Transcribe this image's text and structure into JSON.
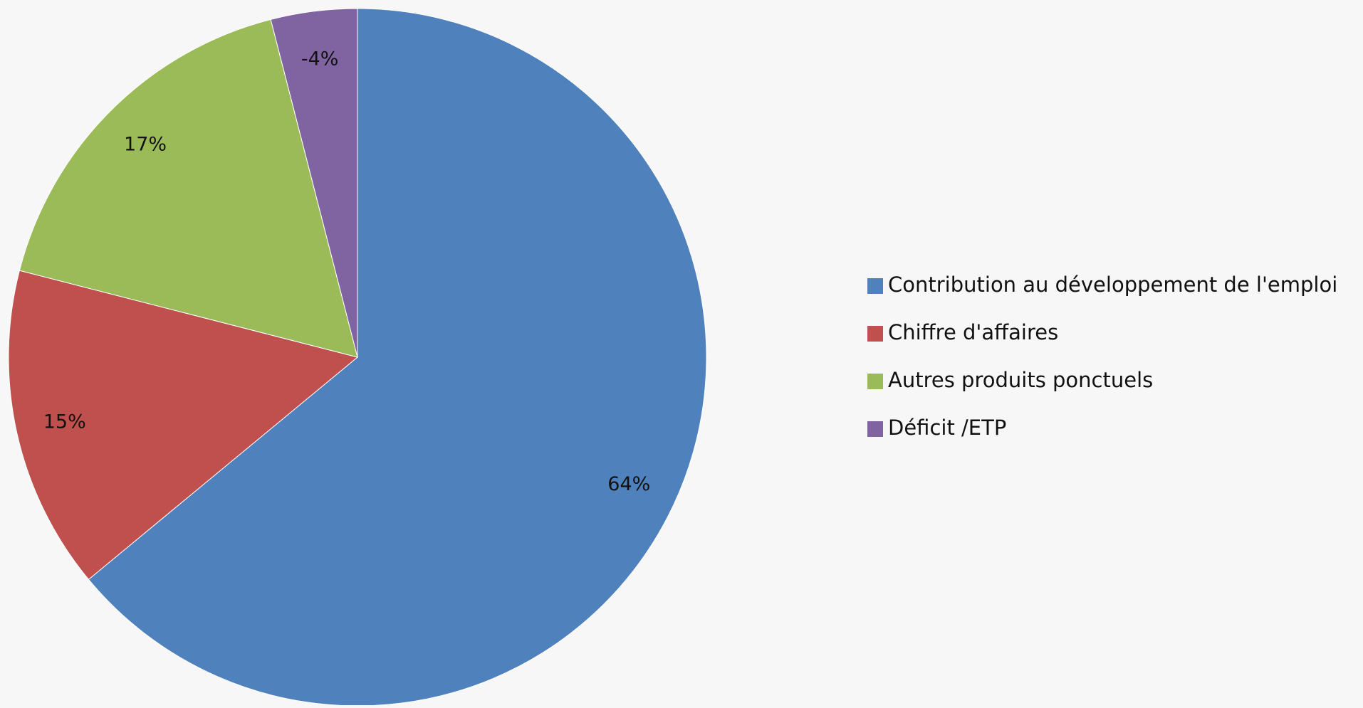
{
  "chart_data": {
    "type": "pie",
    "categories": [
      "Contribution au développement de l'emploi",
      "Chiffre d'affaires",
      "Autres produits ponctuels",
      "Déficit /ETP"
    ],
    "values": [
      64,
      15,
      17,
      -4
    ],
    "value_labels": [
      "64%",
      "15%",
      "17%",
      "-4%"
    ],
    "colors": [
      "#4f81bd",
      "#c0504d",
      "#9bbb59",
      "#8064a2"
    ],
    "legend": "right"
  }
}
